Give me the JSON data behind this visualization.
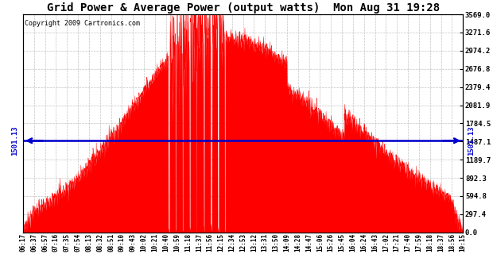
{
  "title": "Grid Power & Average Power (output watts)  Mon Aug 31 19:28",
  "copyright": "Copyright 2009 Cartronics.com",
  "avg_line_value": 1501.13,
  "ymax": 3569.0,
  "ytick_values": [
    0.0,
    297.4,
    594.8,
    892.3,
    1189.7,
    1487.1,
    1784.5,
    2081.9,
    2379.4,
    2676.8,
    2974.2,
    3271.6,
    3569.0
  ],
  "bg_color": "#ffffff",
  "fill_color": "#ff0000",
  "line_color": "#0000cc",
  "grid_color": "#aaaaaa",
  "xtick_labels": [
    "06:17",
    "06:37",
    "06:57",
    "07:16",
    "07:35",
    "07:54",
    "08:13",
    "08:32",
    "08:51",
    "09:10",
    "09:43",
    "10:02",
    "10:21",
    "10:40",
    "10:59",
    "11:18",
    "11:37",
    "11:56",
    "12:15",
    "12:34",
    "12:53",
    "13:12",
    "13:31",
    "13:50",
    "14:09",
    "14:28",
    "14:47",
    "15:06",
    "15:26",
    "15:45",
    "16:04",
    "16:24",
    "16:43",
    "17:02",
    "17:21",
    "17:40",
    "17:59",
    "18:18",
    "18:37",
    "18:56",
    "19:15"
  ],
  "seed": 12345,
  "n_fine": 2000
}
